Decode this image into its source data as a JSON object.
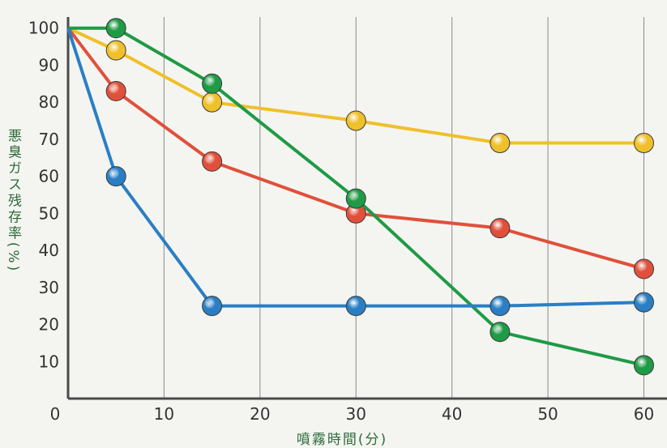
{
  "chart_data": {
    "type": "line",
    "title": "",
    "xlabel": "噴霧時間(分)",
    "ylabel": "悪臭ガス残存率(%)",
    "xlim": [
      0,
      63
    ],
    "ylim": [
      0,
      103
    ],
    "x_ticks": [
      "0",
      "10",
      "20",
      "30",
      "40",
      "50",
      "60"
    ],
    "y_ticks": [
      "10",
      "20",
      "30",
      "40",
      "50",
      "60",
      "70",
      "80",
      "90",
      "100"
    ],
    "grid": "vertical",
    "series": [
      {
        "color": "#f0c02a",
        "x": [
          0,
          5,
          15,
          30,
          45,
          60
        ],
        "y": [
          100,
          94,
          80,
          75,
          69,
          69
        ]
      },
      {
        "color": "#e0503a",
        "x": [
          0,
          5,
          15,
          30,
          45,
          60
        ],
        "y": [
          100,
          83,
          64,
          50,
          46,
          35
        ]
      },
      {
        "color": "#1f9a45",
        "x": [
          0,
          5,
          15,
          30,
          45,
          60
        ],
        "y": [
          100,
          100,
          85,
          54,
          18,
          9
        ]
      },
      {
        "color": "#2a7fc4",
        "x": [
          0,
          5,
          15,
          30,
          45,
          60
        ],
        "y": [
          100,
          60,
          25,
          25,
          25,
          26
        ]
      }
    ]
  }
}
